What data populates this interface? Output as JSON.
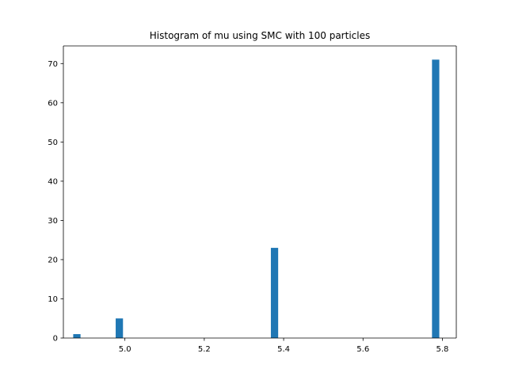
{
  "chart_data": {
    "type": "bar",
    "title": "Histogram of mu using SMC with 100 particles",
    "xlabel": "",
    "ylabel": "",
    "xlim": [
      4.845,
      5.835
    ],
    "ylim": [
      0,
      74.5
    ],
    "x_ticks": [
      "5.0",
      "5.2",
      "5.4",
      "5.6",
      "5.8"
    ],
    "y_ticks": [
      "0",
      "10",
      "20",
      "30",
      "40",
      "50",
      "60",
      "70"
    ],
    "bin_width": 0.0184,
    "bins": [
      {
        "x": 4.879,
        "value": 1
      },
      {
        "x": 4.986,
        "value": 5
      },
      {
        "x": 5.377,
        "value": 23
      },
      {
        "x": 5.783,
        "value": 71
      }
    ],
    "bar_color": "#1f77b4",
    "grid": false
  }
}
